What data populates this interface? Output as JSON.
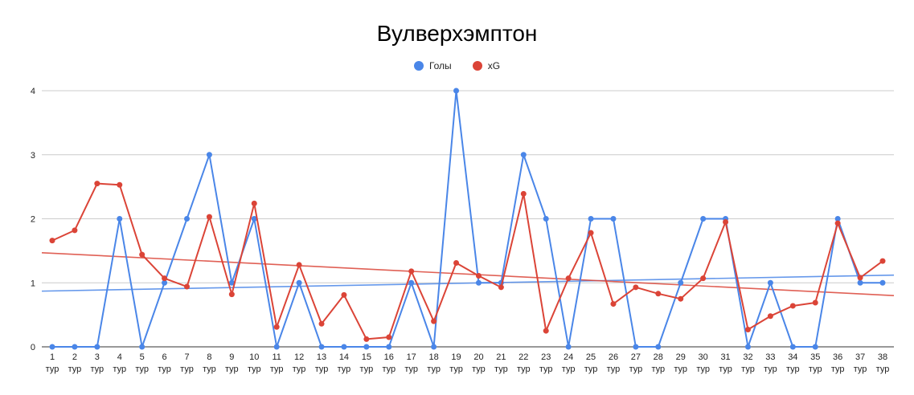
{
  "chart_data": {
    "type": "line",
    "title": "Вулверхэмптон",
    "xlabel": "",
    "ylabel": "",
    "ylim": [
      0,
      4
    ],
    "yticks": [
      0,
      1,
      2,
      3,
      4
    ],
    "grid": true,
    "legend_position": "top-center",
    "categories": [
      "1 тур",
      "2 тур",
      "3 тур",
      "4 тур",
      "5 тур",
      "6 тур",
      "7 тур",
      "8 тур",
      "9 тур",
      "10 тур",
      "11 тур",
      "12 тур",
      "13 тур",
      "14 тур",
      "15 тур",
      "16 тур",
      "17 тур",
      "18 тур",
      "19 тур",
      "20 тур",
      "21 тур",
      "22 тур",
      "23 тур",
      "24 тур",
      "25 тур",
      "26 тур",
      "27 тур",
      "28 тур",
      "29 тур",
      "30 тур",
      "31 тур",
      "32 тур",
      "33 тур",
      "34 тур",
      "35 тур",
      "36 тур",
      "37 тур",
      "38 тур"
    ],
    "category_numbers": [
      "1",
      "2",
      "3",
      "4",
      "5",
      "6",
      "7",
      "8",
      "9",
      "10",
      "11",
      "12",
      "13",
      "14",
      "15",
      "16",
      "17",
      "18",
      "19",
      "20",
      "21",
      "22",
      "23",
      "24",
      "25",
      "26",
      "27",
      "28",
      "29",
      "30",
      "31",
      "32",
      "33",
      "34",
      "35",
      "36",
      "37",
      "38"
    ],
    "category_suffix": "тур",
    "series": [
      {
        "name": "Голы",
        "color": "#4a86e8",
        "values": [
          0,
          0,
          0,
          2,
          0,
          1,
          2,
          3,
          1,
          2,
          0,
          1,
          0,
          0,
          0,
          0,
          1,
          0,
          4,
          1,
          1,
          3,
          2,
          0,
          2,
          2,
          0,
          0,
          1,
          2,
          2,
          0,
          1,
          0,
          0,
          2,
          1,
          1
        ],
        "trendline": [
          0.87,
          1.12
        ]
      },
      {
        "name": "xG",
        "color": "#db4437",
        "values": [
          1.66,
          1.82,
          2.55,
          2.53,
          1.44,
          1.07,
          0.94,
          2.03,
          0.82,
          2.24,
          0.31,
          1.28,
          0.36,
          0.81,
          0.12,
          0.15,
          1.18,
          0.4,
          1.31,
          1.11,
          0.93,
          2.39,
          0.25,
          1.07,
          1.78,
          0.67,
          0.93,
          0.83,
          0.75,
          1.07,
          1.95,
          0.27,
          0.48,
          0.64,
          0.69,
          1.93,
          1.08,
          1.34
        ],
        "trendline": [
          1.47,
          0.8
        ]
      }
    ]
  }
}
